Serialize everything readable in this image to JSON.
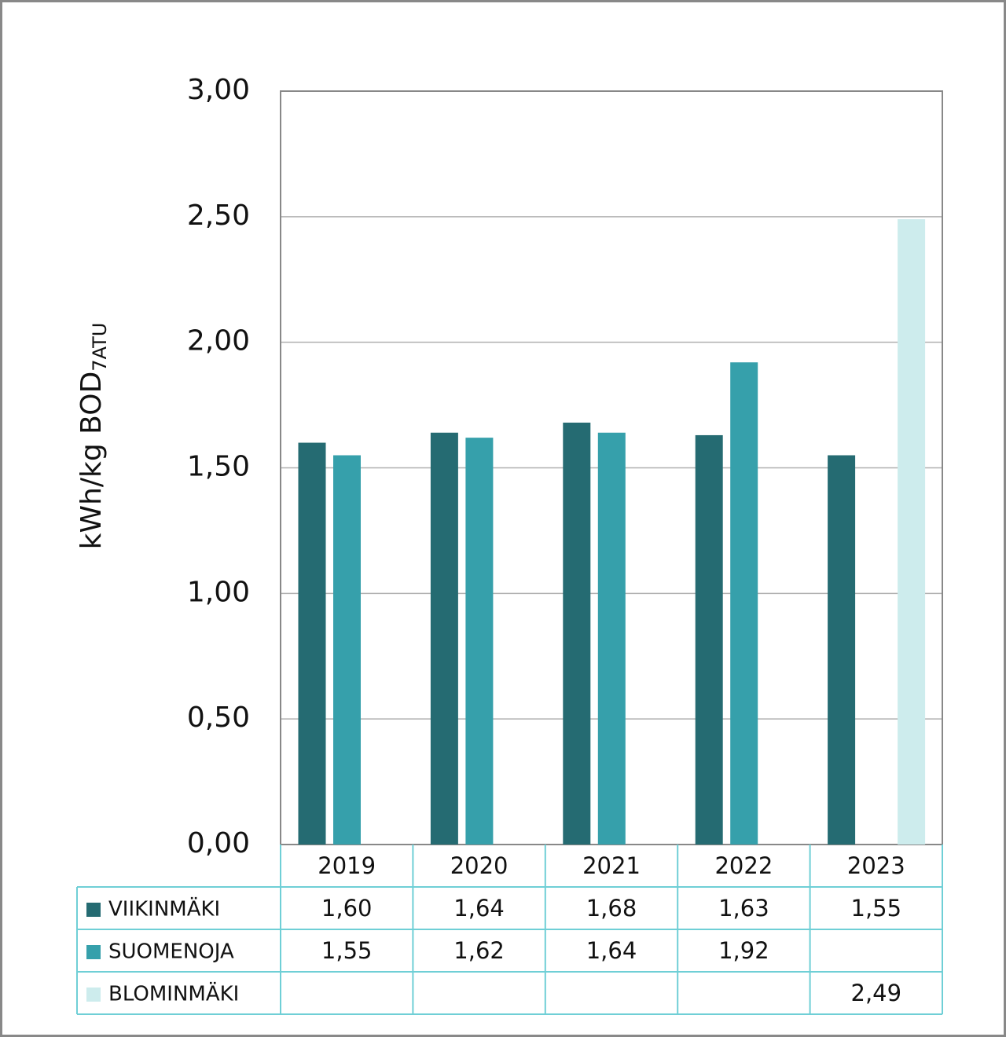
{
  "chart_data": {
    "type": "bar",
    "ylabel": {
      "text": "kWh/kg BOD",
      "subscript": "7ATU"
    },
    "categories": [
      "2019",
      "2020",
      "2021",
      "2022",
      "2023"
    ],
    "series": [
      {
        "name": "VIIKINMÄKI",
        "color": "#256b72",
        "values": [
          1.6,
          1.64,
          1.68,
          1.63,
          1.55
        ],
        "value_labels": [
          "1,60",
          "1,64",
          "1,68",
          "1,63",
          "1,55"
        ]
      },
      {
        "name": "SUOMENOJA",
        "color": "#36a0ab",
        "values": [
          1.55,
          1.62,
          1.64,
          1.92,
          null
        ],
        "value_labels": [
          "1,55",
          "1,62",
          "1,64",
          "1,92",
          null
        ]
      },
      {
        "name": "BLOMINMÄKI",
        "color": "#cdeced",
        "values": [
          null,
          null,
          null,
          null,
          2.49
        ],
        "value_labels": [
          null,
          null,
          null,
          null,
          "2,49"
        ]
      }
    ],
    "ylim": [
      0,
      3
    ],
    "yticks": [
      {
        "value": 0,
        "label": "0,00"
      },
      {
        "value": 0.5,
        "label": "0,50"
      },
      {
        "value": 1,
        "label": "1,00"
      },
      {
        "value": 1.5,
        "label": "1,50"
      },
      {
        "value": 2,
        "label": "2,00"
      },
      {
        "value": 2.5,
        "label": "2,50"
      },
      {
        "value": 3,
        "label": "3,00"
      }
    ],
    "grid": true
  }
}
